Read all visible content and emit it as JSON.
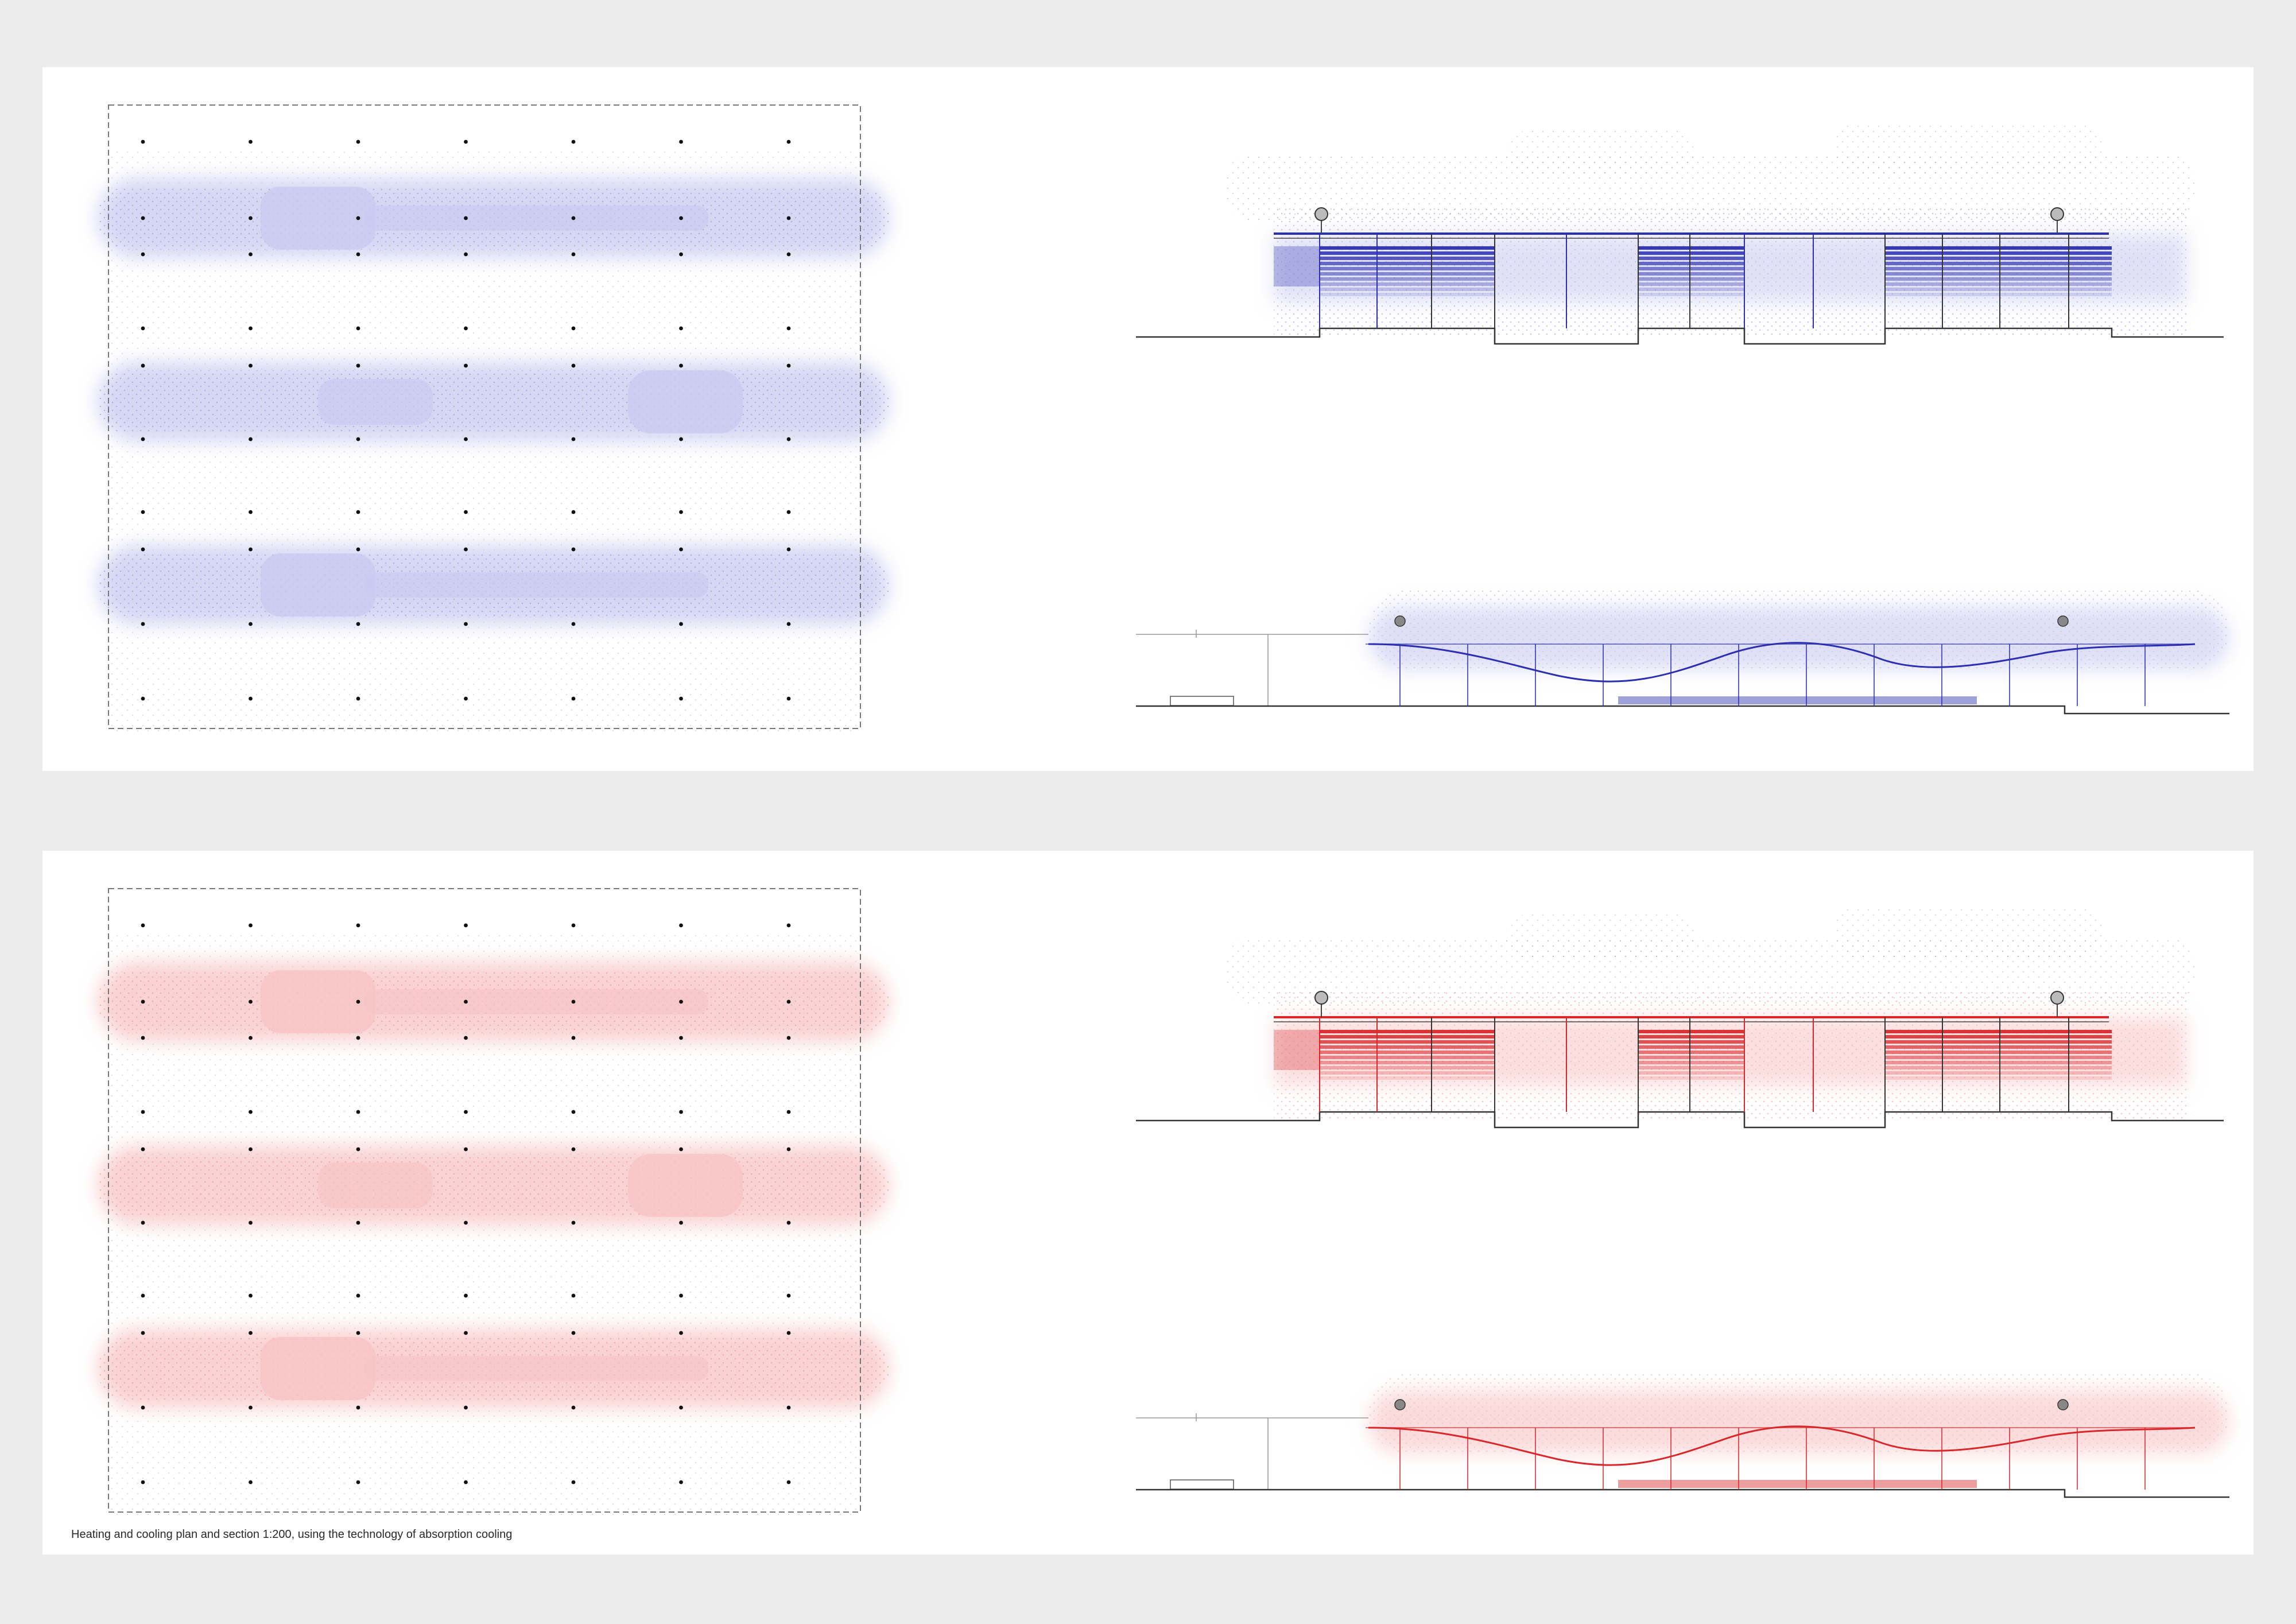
{
  "caption": "Heating and cooling plan and section 1:200, using the technology of absorption cooling",
  "panels": [
    {
      "id": "cooling",
      "mode": "cooling",
      "accent": "#2b2fb0",
      "cloud": "#c9caf0",
      "dots": "#8e90dd"
    },
    {
      "id": "heating",
      "mode": "heating",
      "accent": "#d8282b",
      "cloud": "#f8c4c5",
      "dots": "#ee8a8c"
    }
  ],
  "plan": {
    "column_grid": {
      "columns": 7,
      "rows": 10
    },
    "cooling_bands": 3
  },
  "sections": {
    "upper": {
      "bays": 3,
      "sensors": 2
    },
    "lower": {
      "sensors": 2
    }
  }
}
